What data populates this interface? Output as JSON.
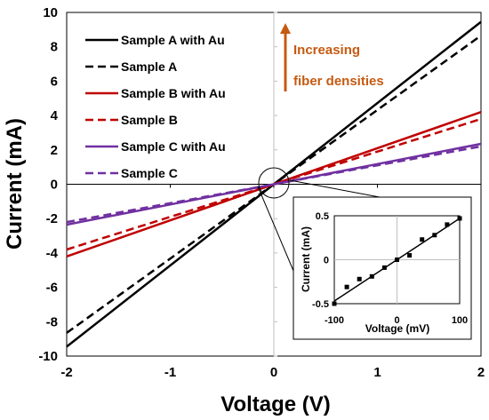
{
  "chart_data": [
    {
      "type": "line",
      "title": "",
      "xlabel": "Voltage (V)",
      "ylabel": "Current (mA)",
      "xlim": [
        -2,
        2
      ],
      "ylim": [
        -10,
        10
      ],
      "xticks": [
        -2,
        -1,
        0,
        1,
        2
      ],
      "yticks": [
        -10,
        -8,
        -6,
        -4,
        -2,
        0,
        2,
        4,
        6,
        8,
        10
      ],
      "grid": false,
      "legend_position": "top-left",
      "series": [
        {
          "name": "Sample A with Au",
          "x": [
            -2,
            2
          ],
          "y": [
            -9.45,
            9.45
          ],
          "color": "#000000",
          "dash": false
        },
        {
          "name": "Sample A",
          "x": [
            -2,
            2
          ],
          "y": [
            -8.65,
            8.65
          ],
          "color": "#000000",
          "dash": true
        },
        {
          "name": "Sample B with Au",
          "x": [
            -2,
            2
          ],
          "y": [
            -4.2,
            4.2
          ],
          "color": "#c00000",
          "dash": false
        },
        {
          "name": "Sample B",
          "x": [
            -2,
            2
          ],
          "y": [
            -3.8,
            3.8
          ],
          "color": "#c00000",
          "dash": true
        },
        {
          "name": "Sample C with Au",
          "x": [
            -2,
            2
          ],
          "y": [
            -2.35,
            2.35
          ],
          "color": "#7030a0",
          "dash": false
        },
        {
          "name": "Sample C",
          "x": [
            -2,
            2
          ],
          "y": [
            -2.2,
            2.2
          ],
          "color": "#7030a0",
          "dash": true
        }
      ],
      "annotation": {
        "line1": "Increasing",
        "line2": "fiber densities",
        "color": "#c55a11"
      }
    },
    {
      "type": "scatter",
      "title": "",
      "xlabel": "Voltage (mV)",
      "ylabel": "Current (mA)",
      "xlim": [
        -100,
        100
      ],
      "ylim": [
        -0.5,
        0.5
      ],
      "xticks": [
        -100,
        0,
        100
      ],
      "yticks": [
        -0.5,
        0,
        0.5
      ],
      "x": [
        -100,
        -80,
        -60,
        -40,
        -20,
        0,
        20,
        40,
        60,
        80,
        100
      ],
      "y": [
        -0.5,
        -0.31,
        -0.22,
        -0.19,
        -0.09,
        0.0,
        0.05,
        0.23,
        0.28,
        0.4,
        0.47
      ],
      "fit_line": {
        "x": [
          -100,
          100
        ],
        "y": [
          -0.47,
          0.47
        ]
      }
    }
  ]
}
